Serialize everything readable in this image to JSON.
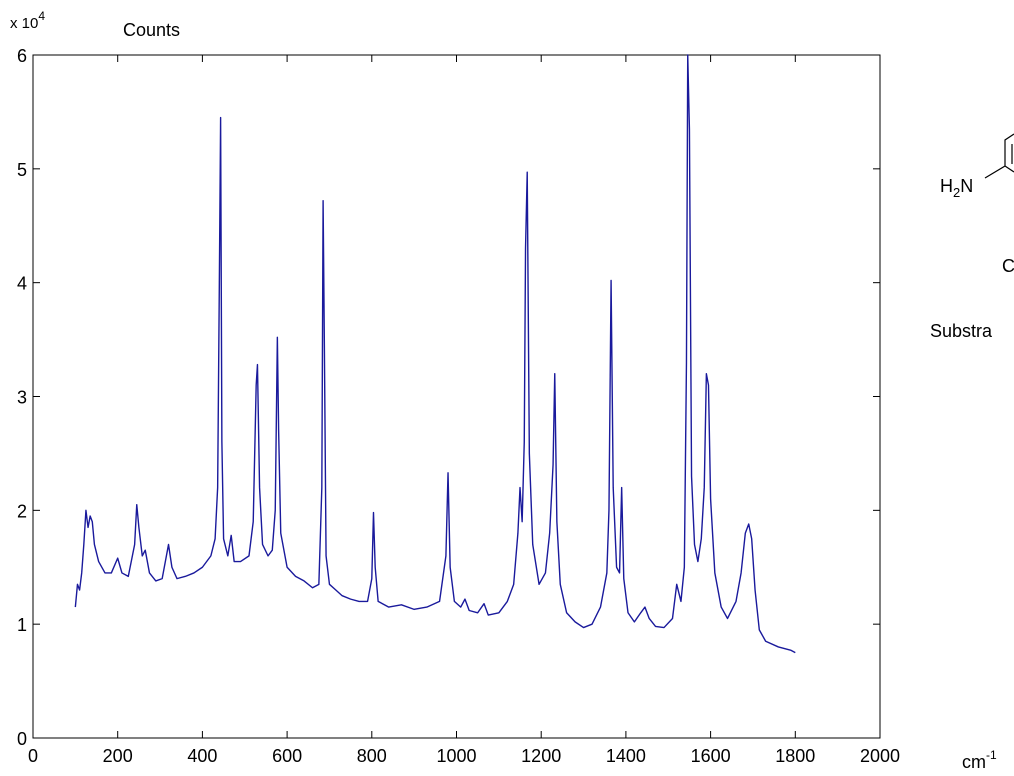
{
  "chart_data": {
    "type": "line",
    "ylabel": "Counts",
    "y_multiplier": {
      "base": "x 10",
      "exponent": "4"
    },
    "xlabel": {
      "base": "cm",
      "exponent": "-1"
    },
    "color": "#1a1a9c",
    "xlim": [
      0,
      2000
    ],
    "xticks": [
      0,
      200,
      400,
      600,
      800,
      1000,
      1200,
      1400,
      1600,
      1800,
      2000
    ],
    "ylim": [
      0,
      6
    ],
    "yticks": [
      0,
      1,
      2,
      3,
      4,
      5,
      6
    ],
    "x": [
      100,
      105,
      110,
      115,
      120,
      125,
      130,
      135,
      140,
      145,
      155,
      170,
      185,
      200,
      210,
      225,
      240,
      245,
      250,
      258,
      265,
      275,
      290,
      305,
      315,
      320,
      328,
      340,
      360,
      380,
      400,
      420,
      430,
      436,
      440,
      443,
      446,
      450,
      460,
      468,
      475,
      490,
      510,
      520,
      527,
      530,
      535,
      542,
      555,
      565,
      572,
      577,
      580,
      585,
      600,
      620,
      640,
      660,
      675,
      682,
      685,
      688,
      692,
      700,
      715,
      730,
      750,
      770,
      790,
      800,
      804,
      808,
      815,
      840,
      870,
      900,
      930,
      960,
      975,
      980,
      985,
      995,
      1010,
      1020,
      1030,
      1050,
      1065,
      1075,
      1100,
      1120,
      1135,
      1145,
      1150,
      1155,
      1160,
      1163,
      1167,
      1172,
      1180,
      1195,
      1210,
      1220,
      1228,
      1232,
      1237,
      1245,
      1260,
      1280,
      1300,
      1320,
      1340,
      1355,
      1360,
      1365,
      1370,
      1378,
      1385,
      1390,
      1395,
      1405,
      1420,
      1435,
      1445,
      1455,
      1470,
      1490,
      1510,
      1520,
      1530,
      1538,
      1543,
      1546,
      1550,
      1555,
      1562,
      1570,
      1578,
      1585,
      1590,
      1595,
      1600,
      1610,
      1625,
      1640,
      1660,
      1672,
      1682,
      1690,
      1697,
      1705,
      1715,
      1730,
      1760,
      1790,
      1800
    ],
    "values": [
      1.15,
      1.35,
      1.3,
      1.45,
      1.7,
      2.0,
      1.85,
      1.95,
      1.9,
      1.7,
      1.55,
      1.45,
      1.45,
      1.58,
      1.45,
      1.42,
      1.7,
      2.05,
      1.85,
      1.6,
      1.65,
      1.45,
      1.38,
      1.4,
      1.6,
      1.7,
      1.5,
      1.4,
      1.42,
      1.45,
      1.5,
      1.6,
      1.75,
      2.2,
      4.0,
      5.45,
      2.6,
      1.75,
      1.6,
      1.78,
      1.55,
      1.55,
      1.6,
      1.9,
      3.1,
      3.28,
      2.2,
      1.7,
      1.6,
      1.65,
      2.0,
      3.52,
      2.7,
      1.8,
      1.5,
      1.42,
      1.38,
      1.32,
      1.35,
      2.2,
      4.72,
      3.45,
      1.6,
      1.35,
      1.3,
      1.25,
      1.22,
      1.2,
      1.2,
      1.4,
      1.98,
      1.5,
      1.2,
      1.15,
      1.17,
      1.13,
      1.15,
      1.2,
      1.6,
      2.33,
      1.5,
      1.2,
      1.15,
      1.22,
      1.12,
      1.1,
      1.18,
      1.08,
      1.1,
      1.2,
      1.35,
      1.8,
      2.2,
      1.9,
      2.6,
      4.3,
      4.97,
      2.5,
      1.7,
      1.35,
      1.45,
      1.8,
      2.4,
      3.2,
      1.9,
      1.35,
      1.1,
      1.02,
      0.97,
      1.0,
      1.15,
      1.45,
      2.0,
      4.02,
      2.2,
      1.5,
      1.45,
      2.2,
      1.4,
      1.1,
      1.02,
      1.1,
      1.15,
      1.05,
      0.98,
      0.97,
      1.05,
      1.35,
      1.2,
      1.5,
      3.3,
      6.0,
      5.35,
      2.3,
      1.7,
      1.55,
      1.75,
      2.2,
      3.2,
      3.1,
      2.1,
      1.45,
      1.15,
      1.05,
      1.2,
      1.45,
      1.8,
      1.88,
      1.75,
      1.3,
      0.95,
      0.85,
      0.8,
      0.77,
      0.75
    ]
  },
  "structure": {
    "amine": {
      "h": "H",
      "sub": "2",
      "n": "N"
    },
    "letter": "C",
    "substrate": "Substra"
  }
}
